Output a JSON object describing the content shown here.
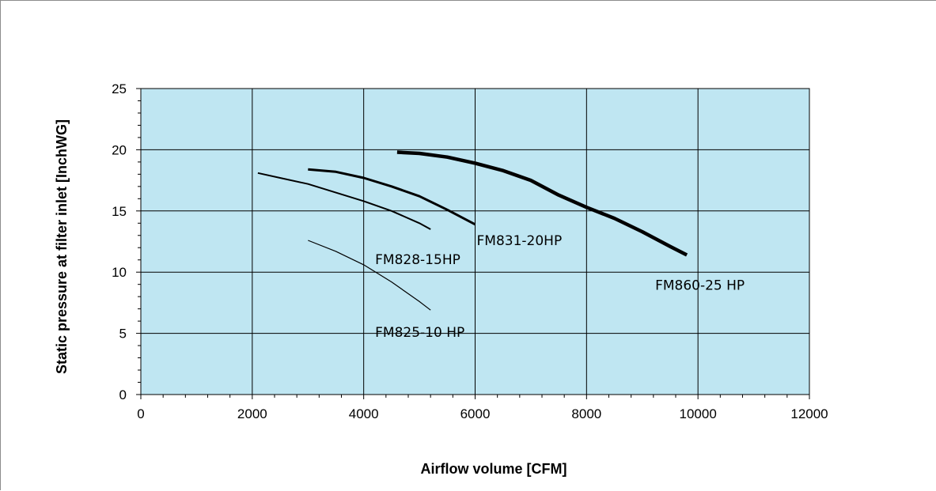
{
  "chart_data": {
    "type": "line",
    "title": "",
    "xlabel": "Airflow volume [CFM]",
    "ylabel": "Static pressure at filter inlet [InchWG]",
    "xlim": [
      0,
      12000
    ],
    "ylim": [
      0,
      25
    ],
    "x_ticks": [
      0,
      2000,
      4000,
      6000,
      8000,
      10000,
      12000
    ],
    "x_tick_labels": [
      "0",
      "2000",
      "4000",
      "6000",
      "8000",
      "10000",
      "12000"
    ],
    "y_ticks": [
      0,
      5,
      10,
      15,
      20,
      25
    ],
    "y_tick_labels": [
      "0",
      "5",
      "10",
      "15",
      "20",
      "25"
    ],
    "grid": true,
    "legend": "none",
    "plot_background": "#bfe6f2",
    "line_color": "#000000",
    "series": [
      {
        "name": "FM825-10 HP",
        "line_weight": "thin",
        "x": [
          3000,
          3500,
          4000,
          4500,
          5000,
          5200
        ],
        "y": [
          12.6,
          11.7,
          10.6,
          9.2,
          7.6,
          6.9
        ]
      },
      {
        "name": "FM828-15HP",
        "line_weight": "medium",
        "x": [
          2100,
          2500,
          3000,
          3500,
          4000,
          4500,
          5000,
          5200
        ],
        "y": [
          18.1,
          17.7,
          17.2,
          16.5,
          15.8,
          15.0,
          14.0,
          13.5
        ]
      },
      {
        "name": "FM831-20HP",
        "line_weight": "thick",
        "x": [
          3000,
          3500,
          4000,
          4500,
          5000,
          5500,
          6000
        ],
        "y": [
          18.4,
          18.2,
          17.7,
          17.0,
          16.2,
          15.1,
          13.9
        ]
      },
      {
        "name": "FM860-25 HP",
        "line_weight": "heavy",
        "x": [
          4600,
          5000,
          5500,
          6000,
          6500,
          7000,
          7500,
          8000,
          8500,
          9000,
          9500,
          9800
        ],
        "y": [
          19.8,
          19.7,
          19.4,
          18.9,
          18.3,
          17.5,
          16.3,
          15.3,
          14.4,
          13.3,
          12.1,
          11.4
        ]
      }
    ]
  }
}
